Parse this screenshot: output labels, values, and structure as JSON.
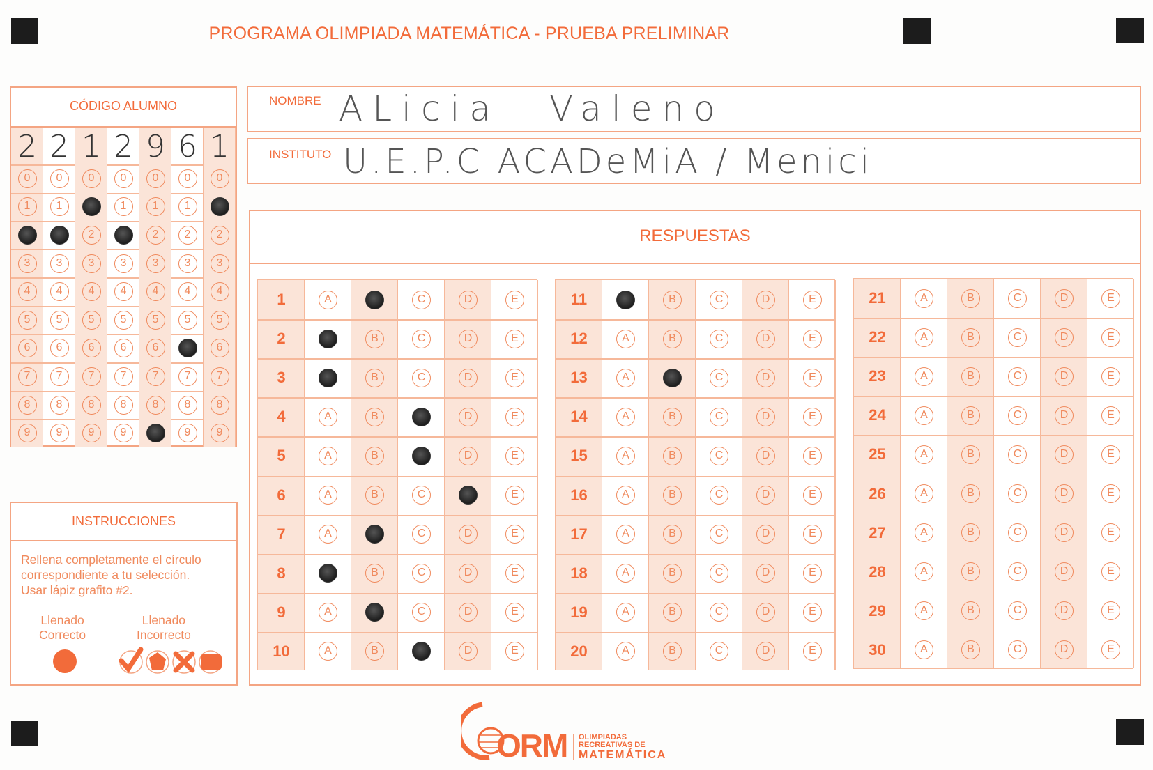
{
  "title": "PROGRAMA OLIMPIADA MATEMÁTICA  - PRUEBA PRELIMINAR",
  "student_code": {
    "header": "CÓDIGO ALUMNO",
    "handwritten_digits": [
      "2",
      "2",
      "1",
      "2",
      "9",
      "6",
      "1"
    ],
    "bubble_digits": [
      "0",
      "1",
      "2",
      "3",
      "4",
      "5",
      "6",
      "7",
      "8",
      "9"
    ],
    "filled": [
      2,
      2,
      1,
      2,
      9,
      6,
      1
    ]
  },
  "nombre": {
    "label": "NOMBRE",
    "value": "ALicia  Valeno"
  },
  "instituto": {
    "label": "INSTITUTO",
    "value": "U.E.P.C ACADeMiA / Menici"
  },
  "instructions": {
    "header": "INSTRUCCIONES",
    "text_lines": [
      "Rellena completamente el círculo",
      "correspondiente a tu selección.",
      "Usar lápiz grafito #2."
    ],
    "correct_label_1": "Llenado",
    "correct_label_2": "Correcto",
    "incorrect_label_1": "Llenado",
    "incorrect_label_2": "Incorrecto"
  },
  "answers": {
    "header": "RESPUESTAS",
    "options": [
      "A",
      "B",
      "C",
      "D",
      "E"
    ],
    "questions": [
      {
        "n": "1",
        "mark": "B"
      },
      {
        "n": "2",
        "mark": "A"
      },
      {
        "n": "3",
        "mark": "A"
      },
      {
        "n": "4",
        "mark": "C"
      },
      {
        "n": "5",
        "mark": "C"
      },
      {
        "n": "6",
        "mark": "D"
      },
      {
        "n": "7",
        "mark": "B"
      },
      {
        "n": "8",
        "mark": "A"
      },
      {
        "n": "9",
        "mark": "B"
      },
      {
        "n": "10",
        "mark": "C"
      },
      {
        "n": "11",
        "mark": "A"
      },
      {
        "n": "12",
        "mark": ""
      },
      {
        "n": "13",
        "mark": "B"
      },
      {
        "n": "14",
        "mark": ""
      },
      {
        "n": "15",
        "mark": ""
      },
      {
        "n": "16",
        "mark": ""
      },
      {
        "n": "17",
        "mark": ""
      },
      {
        "n": "18",
        "mark": ""
      },
      {
        "n": "19",
        "mark": ""
      },
      {
        "n": "20",
        "mark": ""
      },
      {
        "n": "21",
        "mark": ""
      },
      {
        "n": "22",
        "mark": ""
      },
      {
        "n": "23",
        "mark": ""
      },
      {
        "n": "24",
        "mark": ""
      },
      {
        "n": "25",
        "mark": ""
      },
      {
        "n": "26",
        "mark": ""
      },
      {
        "n": "27",
        "mark": ""
      },
      {
        "n": "28",
        "mark": ""
      },
      {
        "n": "29",
        "mark": ""
      },
      {
        "n": "30",
        "mark": ""
      }
    ]
  },
  "logo": {
    "initials": "ORM",
    "line1": "OLIMPIADAS",
    "line2": "RECREATIVAS DE",
    "line3": "MATEMÁTICA"
  },
  "colors": {
    "accent": "#f26b3a",
    "shade": "#fbe4d8",
    "line": "#f4a583",
    "pencil": "#1e1e1e"
  }
}
